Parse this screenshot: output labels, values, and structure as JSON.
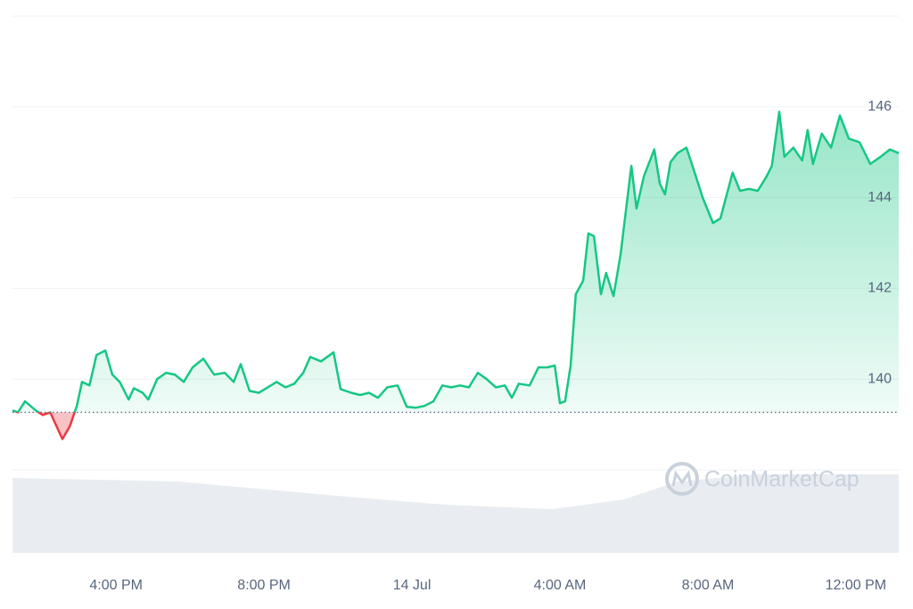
{
  "chart_data": {
    "type": "line",
    "watermark": "CoinMarketCap",
    "x": [
      13.2,
      13.35,
      13.54,
      13.83,
      14.02,
      14.22,
      14.36,
      14.55,
      14.75,
      14.94,
      15.08,
      15.28,
      15.47,
      15.71,
      15.9,
      16.1,
      16.34,
      16.48,
      16.72,
      16.87,
      17.11,
      17.35,
      17.59,
      17.83,
      18.07,
      18.36,
      18.65,
      18.94,
      19.18,
      19.37,
      19.61,
      19.86,
      20.1,
      20.34,
      20.58,
      20.82,
      21.06,
      21.25,
      21.54,
      21.88,
      22.07,
      22.36,
      22.6,
      22.84,
      23.08,
      23.33,
      23.61,
      23.86,
      24.1,
      24.34,
      24.58,
      24.82,
      25.06,
      25.3,
      25.54,
      25.78,
      26.02,
      26.27,
      26.51,
      26.7,
      26.89,
      27.18,
      27.42,
      27.66,
      27.86,
      28.0,
      28.14,
      28.29,
      28.43,
      28.63,
      28.77,
      28.92,
      29.11,
      29.25,
      29.45,
      29.64,
      29.93,
      30.07,
      30.27,
      30.55,
      30.7,
      30.84,
      30.99,
      31.18,
      31.42,
      31.61,
      31.86,
      32.14,
      32.34,
      32.67,
      32.87,
      33.11,
      33.35,
      33.59,
      33.73,
      33.93,
      34.07,
      34.31,
      34.55,
      34.7,
      34.84,
      35.08,
      35.33,
      35.57,
      35.81,
      36.1,
      36.39,
      36.67,
      36.92,
      37.16
    ],
    "series": [
      {
        "color": "#16c784",
        "values": [
          139.31,
          139.27,
          139.51,
          139.31,
          139.21,
          139.27,
          139.02,
          138.68,
          138.96,
          139.41,
          139.94,
          139.86,
          140.53,
          140.63,
          140.1,
          139.94,
          139.55,
          139.8,
          139.7,
          139.55,
          140.0,
          140.14,
          140.1,
          139.94,
          140.26,
          140.45,
          140.1,
          140.14,
          139.94,
          140.33,
          139.74,
          139.7,
          139.82,
          139.94,
          139.82,
          139.9,
          140.14,
          140.49,
          140.39,
          140.59,
          139.78,
          139.7,
          139.65,
          139.7,
          139.59,
          139.82,
          139.86,
          139.39,
          139.37,
          139.41,
          139.51,
          139.86,
          139.82,
          139.86,
          139.82,
          140.14,
          140.0,
          139.82,
          139.86,
          139.59,
          139.9,
          139.86,
          140.26,
          140.26,
          140.3,
          139.47,
          139.51,
          140.3,
          141.87,
          142.17,
          143.21,
          143.15,
          141.87,
          142.34,
          141.83,
          142.74,
          144.7,
          143.76,
          144.47,
          145.06,
          144.31,
          144.07,
          144.78,
          144.98,
          145.1,
          144.63,
          144.0,
          143.44,
          143.54,
          144.55,
          144.15,
          144.19,
          144.15,
          144.47,
          144.7,
          145.89,
          144.9,
          145.1,
          144.82,
          145.49,
          144.74,
          145.41,
          145.1,
          145.81,
          145.3,
          145.22,
          144.74,
          144.9,
          145.06,
          144.98
        ]
      }
    ],
    "down_color": "#ea3943",
    "baseline": 139.27,
    "xlim": [
      13.2,
      37.16
    ],
    "ylim": [
      138,
      148
    ],
    "yticks": [
      140,
      142,
      144,
      146
    ],
    "xticks": [
      {
        "value": 16,
        "label": "4:00 PM"
      },
      {
        "value": 20,
        "label": "8:00 PM"
      },
      {
        "value": 24,
        "label": "14 Jul"
      },
      {
        "value": 28,
        "label": "4:00 AM"
      },
      {
        "value": 32,
        "label": "8:00 AM"
      },
      {
        "value": 36,
        "label": "12:00 PM"
      }
    ],
    "grid": true
  }
}
